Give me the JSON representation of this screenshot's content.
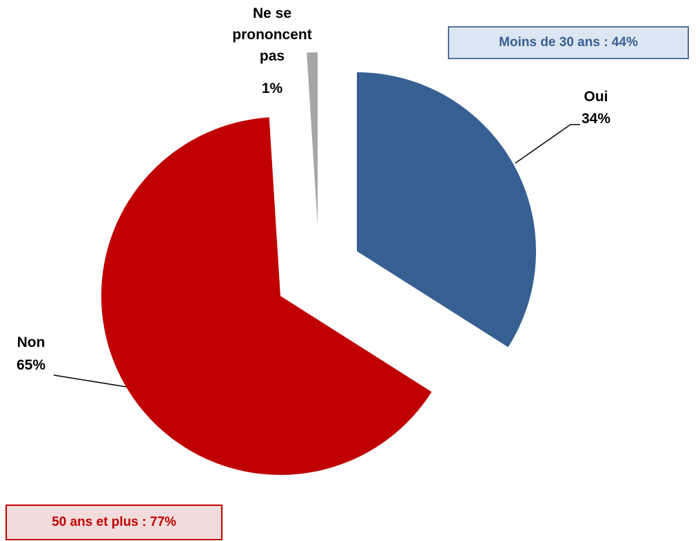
{
  "chart_data": {
    "type": "pie",
    "categories": [
      "Oui",
      "Non",
      "Ne se prononcent pas"
    ],
    "values": [
      34,
      65,
      1
    ],
    "value_labels": [
      "34%",
      "65%",
      "1%"
    ],
    "colors": [
      "#376092",
      "#c00000",
      "#a6a6a6"
    ],
    "annotations": [
      "Moins de 30 ans : 44%",
      "50 ans et plus : 77%"
    ]
  }
}
